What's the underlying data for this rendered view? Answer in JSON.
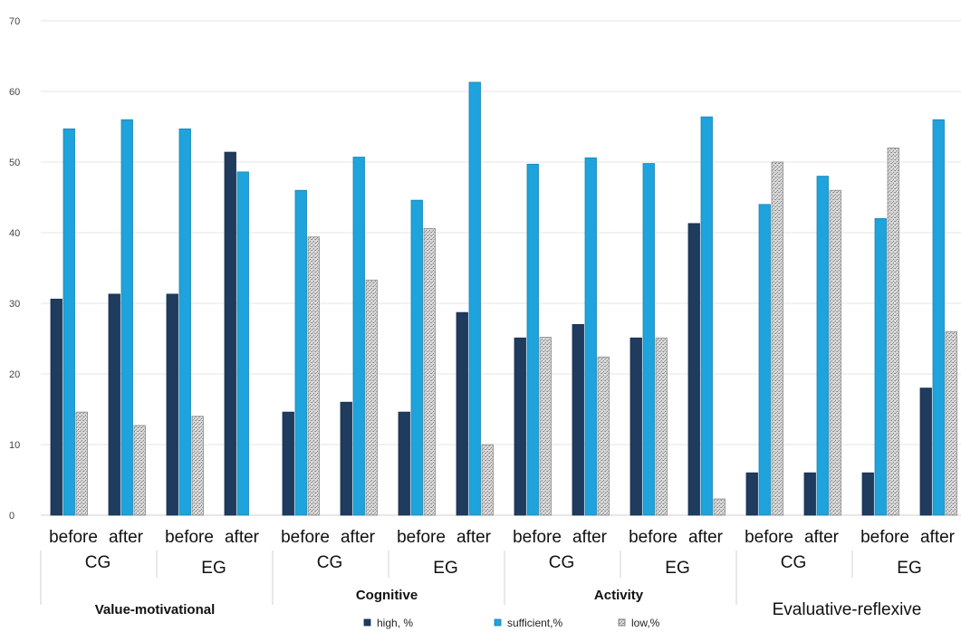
{
  "chart_data": {
    "type": "bar",
    "ylim": [
      0,
      70
    ],
    "yticks": [
      "0",
      "10",
      "20",
      "30",
      "40",
      "50",
      "60",
      "70"
    ],
    "grid": true,
    "legend_position": "bottom",
    "colors": {
      "high": "#1f3b5e",
      "sufficient": "#1ea3dc",
      "low": "#c8c8c8"
    },
    "legend": [
      "high, %",
      "sufficient,%",
      "low,%"
    ],
    "criteria": [
      {
        "name": "Value-motivational",
        "groups": [
          {
            "name": "CG",
            "stages": [
              {
                "label": "before",
                "values": [
                  30.6,
                  54.7,
                  14.6
                ]
              },
              {
                "label": "after",
                "values": [
                  31.3,
                  56.0,
                  12.7
                ]
              }
            ]
          },
          {
            "name": "EG",
            "stages": [
              {
                "label": "before",
                "values": [
                  31.3,
                  54.7,
                  14.0
                ]
              },
              {
                "label": "after",
                "values": [
                  51.4,
                  48.6,
                  0
                ]
              }
            ]
          }
        ]
      },
      {
        "name": "Cognitive",
        "groups": [
          {
            "name": "CG",
            "stages": [
              {
                "label": "before",
                "values": [
                  14.6,
                  46.0,
                  39.4
                ]
              },
              {
                "label": "after",
                "values": [
                  16.0,
                  50.7,
                  33.3
                ]
              }
            ]
          },
          {
            "name": "EG",
            "stages": [
              {
                "label": "before",
                "values": [
                  14.6,
                  44.6,
                  40.6
                ]
              },
              {
                "label": "after",
                "values": [
                  28.7,
                  61.3,
                  10.0
                ]
              }
            ]
          }
        ]
      },
      {
        "name": "Activity",
        "groups": [
          {
            "name": "CG",
            "stages": [
              {
                "label": "before",
                "values": [
                  25.1,
                  49.7,
                  25.2
                ]
              },
              {
                "label": "after",
                "values": [
                  27.0,
                  50.6,
                  22.4
                ]
              }
            ]
          },
          {
            "name": "EG",
            "stages": [
              {
                "label": "before",
                "values": [
                  25.1,
                  49.8,
                  25.1
                ]
              },
              {
                "label": "after",
                "values": [
                  41.3,
                  56.4,
                  2.3
                ]
              }
            ]
          }
        ]
      },
      {
        "name": "Evaluative-reflexive",
        "groups": [
          {
            "name": "CG",
            "stages": [
              {
                "label": "before",
                "values": [
                  6.0,
                  44.0,
                  50.0
                ]
              },
              {
                "label": "after",
                "values": [
                  6.0,
                  48.0,
                  46.0
                ]
              }
            ]
          },
          {
            "name": "EG",
            "stages": [
              {
                "label": "before",
                "values": [
                  6.0,
                  42.0,
                  52.0
                ]
              },
              {
                "label": "after",
                "values": [
                  18.0,
                  56.0,
                  26.0
                ]
              }
            ]
          }
        ]
      }
    ]
  }
}
